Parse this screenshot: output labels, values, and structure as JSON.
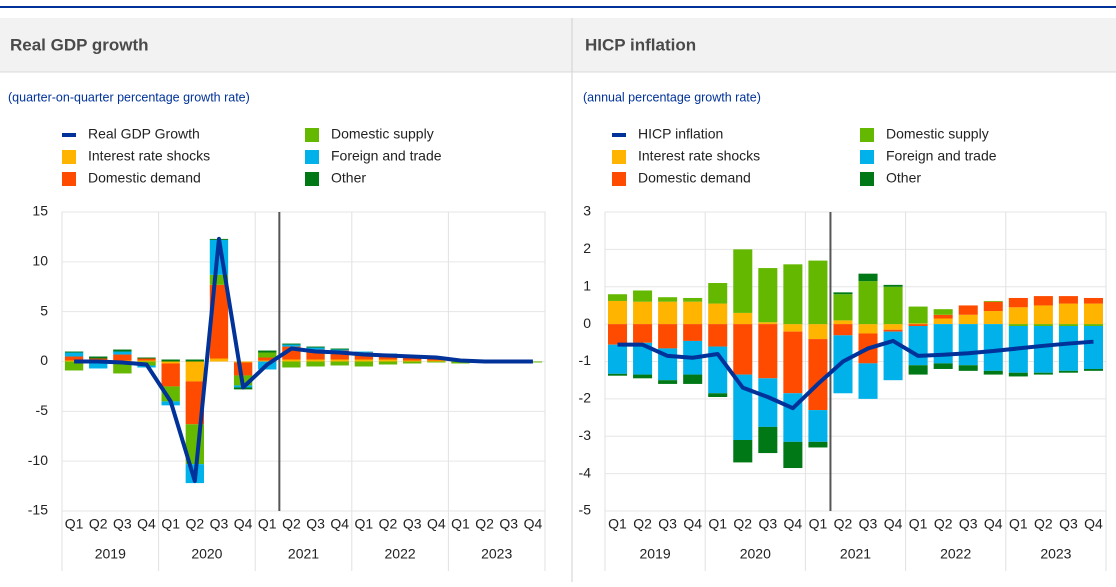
{
  "chart_data": [
    {
      "type": "bar",
      "stacked": true,
      "title": "Real GDP growth",
      "subtitle": "(quarter-on-quarter percentage growth rate)",
      "categories": [
        "Q1",
        "Q2",
        "Q3",
        "Q4",
        "Q1",
        "Q2",
        "Q3",
        "Q4",
        "Q1",
        "Q2",
        "Q3",
        "Q4",
        "Q1",
        "Q2",
        "Q3",
        "Q4",
        "Q1",
        "Q2",
        "Q3",
        "Q4"
      ],
      "years": [
        "2019",
        "2020",
        "2021",
        "2022",
        "2023"
      ],
      "ylim": [
        -15,
        15
      ],
      "yticks": [
        -15,
        -10,
        -5,
        0,
        5,
        10,
        15
      ],
      "grid": true,
      "line": {
        "name": "Real GDP Growth",
        "color": "#003299",
        "values": [
          0.0,
          0.0,
          -0.1,
          -0.3,
          -4.0,
          -12.0,
          12.3,
          -2.6,
          -0.3,
          1.3,
          1.0,
          0.9,
          0.7,
          0.6,
          0.5,
          0.4,
          0.1,
          0.0,
          0.0,
          0.0
        ]
      },
      "series": [
        {
          "name": "Interest rate shocks",
          "color": "#ffb400",
          "values": [
            0.1,
            0.1,
            0.1,
            0.1,
            -0.2,
            -2.0,
            0.3,
            -0.1,
            0.1,
            0.2,
            0.2,
            0.2,
            0.2,
            0.2,
            0.1,
            0.1,
            0.1,
            0.1,
            0.0,
            0.0
          ]
        },
        {
          "name": "Domestic demand",
          "color": "#ff4b00",
          "values": [
            0.4,
            0.2,
            0.6,
            0.2,
            -2.3,
            -4.3,
            7.4,
            -1.3,
            0.3,
            1.3,
            1.0,
            0.9,
            0.7,
            0.5,
            0.4,
            0.3,
            0.1,
            0.1,
            0.1,
            0.0
          ]
        },
        {
          "name": "Domestic supply",
          "color": "#65b800",
          "values": [
            -0.9,
            -0.2,
            -1.2,
            -0.4,
            -1.5,
            -4.0,
            1.0,
            -1.0,
            0.5,
            -0.6,
            -0.5,
            -0.4,
            -0.5,
            -0.3,
            -0.2,
            -0.1,
            -0.2,
            -0.1,
            -0.1,
            -0.1
          ]
        },
        {
          "name": "Foreign and trade",
          "color": "#00b1ea",
          "values": [
            0.4,
            -0.5,
            0.3,
            -0.2,
            -0.4,
            -1.9,
            3.5,
            -0.2,
            -0.8,
            0.2,
            0.2,
            0.1,
            0.1,
            0.1,
            0.1,
            0.0,
            0.0,
            0.0,
            0.0,
            0.0
          ]
        },
        {
          "name": "Other",
          "color": "#007816",
          "values": [
            0.1,
            0.2,
            0.2,
            0.1,
            0.2,
            0.2,
            0.1,
            -0.2,
            0.2,
            0.1,
            0.1,
            0.1,
            0.0,
            0.0,
            0.0,
            0.0,
            0.0,
            0.0,
            0.0,
            0.0
          ]
        }
      ]
    },
    {
      "type": "bar",
      "stacked": true,
      "title": "HICP inflation",
      "subtitle": "(annual percentage growth rate)",
      "categories": [
        "Q1",
        "Q2",
        "Q3",
        "Q4",
        "Q1",
        "Q2",
        "Q3",
        "Q4",
        "Q1",
        "Q2",
        "Q3",
        "Q4",
        "Q1",
        "Q2",
        "Q3",
        "Q4",
        "Q1",
        "Q2",
        "Q3",
        "Q4"
      ],
      "years": [
        "2019",
        "2020",
        "2021",
        "2022",
        "2023"
      ],
      "ylim": [
        -5,
        3
      ],
      "yticks": [
        -5,
        -4,
        -3,
        -2,
        -1,
        0,
        1,
        2,
        3
      ],
      "grid": true,
      "line": {
        "name": "HICP inflation",
        "color": "#003299",
        "values": [
          -0.55,
          -0.55,
          -0.85,
          -0.9,
          -0.8,
          -1.7,
          -1.95,
          -2.25,
          -1.6,
          -1.0,
          -0.65,
          -0.45,
          -0.85,
          -0.82,
          -0.78,
          -0.72,
          -0.65,
          -0.58,
          -0.52,
          -0.47
        ]
      },
      "series": [
        {
          "name": "Interest rate shocks",
          "color": "#ffb400",
          "values": [
            0.62,
            0.6,
            0.6,
            0.6,
            0.55,
            0.3,
            0.05,
            -0.2,
            -0.4,
            0.1,
            -0.25,
            -0.15,
            0.02,
            0.15,
            0.25,
            0.35,
            0.45,
            0.5,
            0.55,
            0.55
          ]
        },
        {
          "name": "Domestic demand",
          "color": "#ff4b00",
          "values": [
            -0.55,
            -0.5,
            -0.65,
            -0.45,
            -0.6,
            -1.35,
            -1.45,
            -1.65,
            -1.9,
            -0.3,
            -0.8,
            -0.05,
            -0.05,
            0.1,
            0.25,
            0.25,
            0.25,
            0.25,
            0.2,
            0.15
          ]
        },
        {
          "name": "Domestic supply",
          "color": "#65b800",
          "values": [
            0.18,
            0.3,
            0.12,
            0.1,
            0.55,
            1.7,
            1.45,
            1.6,
            1.7,
            0.7,
            1.15,
            1.0,
            0.45,
            0.15,
            0.0,
            0.02,
            -0.05,
            -0.05,
            -0.05,
            -0.05
          ]
        },
        {
          "name": "Foreign and trade",
          "color": "#00b1ea",
          "values": [
            -0.78,
            -0.85,
            -0.85,
            -0.9,
            -1.25,
            -1.75,
            -1.3,
            -1.3,
            -0.85,
            -1.55,
            -0.95,
            -1.3,
            -1.05,
            -1.05,
            -1.1,
            -1.25,
            -1.25,
            -1.25,
            -1.2,
            -1.15
          ]
        },
        {
          "name": "Other",
          "color": "#007816",
          "values": [
            -0.05,
            -0.1,
            -0.1,
            -0.25,
            -0.1,
            -0.6,
            -0.7,
            -0.7,
            -0.15,
            0.05,
            0.2,
            0.05,
            -0.25,
            -0.15,
            -0.15,
            -0.1,
            -0.1,
            -0.05,
            -0.05,
            -0.05
          ]
        }
      ]
    }
  ]
}
